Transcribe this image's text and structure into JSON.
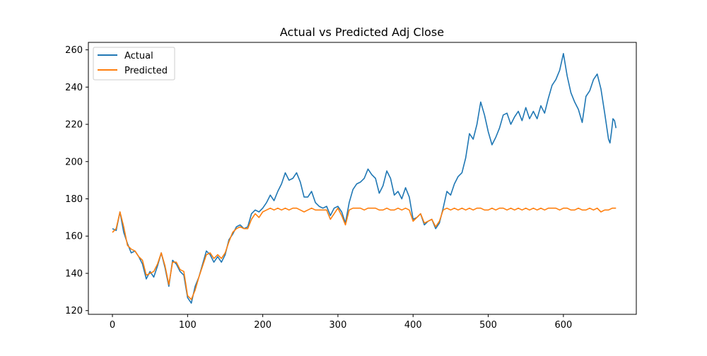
{
  "colors": {
    "actual": "#1f77b4",
    "predicted": "#ff7f0e",
    "axis": "#000000",
    "background": "#ffffff"
  },
  "chart_data": {
    "type": "line",
    "title": "Actual vs Predicted Adj Close",
    "xlabel": "",
    "ylabel": "",
    "xlim": [
      -32,
      697
    ],
    "ylim": [
      118,
      264
    ],
    "xticks": [
      0,
      100,
      200,
      300,
      400,
      500,
      600
    ],
    "yticks": [
      120,
      140,
      160,
      180,
      200,
      220,
      240,
      260
    ],
    "grid": false,
    "legend_position": "top-left",
    "series": [
      {
        "name": "Actual",
        "color": "#1f77b4",
        "points": [
          [
            0,
            164
          ],
          [
            5,
            163
          ],
          [
            10,
            173
          ],
          [
            15,
            162
          ],
          [
            20,
            156
          ],
          [
            25,
            151
          ],
          [
            30,
            152
          ],
          [
            35,
            149
          ],
          [
            40,
            145
          ],
          [
            45,
            137
          ],
          [
            50,
            141
          ],
          [
            55,
            138
          ],
          [
            60,
            144
          ],
          [
            65,
            151
          ],
          [
            70,
            143
          ],
          [
            75,
            133
          ],
          [
            80,
            147
          ],
          [
            85,
            145
          ],
          [
            90,
            141
          ],
          [
            95,
            139
          ],
          [
            100,
            127
          ],
          [
            105,
            124
          ],
          [
            110,
            133
          ],
          [
            115,
            138
          ],
          [
            120,
            145
          ],
          [
            125,
            152
          ],
          [
            130,
            150
          ],
          [
            135,
            146
          ],
          [
            140,
            149
          ],
          [
            145,
            146
          ],
          [
            150,
            150
          ],
          [
            155,
            158
          ],
          [
            160,
            161
          ],
          [
            165,
            165
          ],
          [
            170,
            166
          ],
          [
            175,
            164
          ],
          [
            180,
            165
          ],
          [
            185,
            172
          ],
          [
            190,
            174
          ],
          [
            195,
            173
          ],
          [
            200,
            175
          ],
          [
            205,
            178
          ],
          [
            210,
            182
          ],
          [
            215,
            179
          ],
          [
            220,
            184
          ],
          [
            225,
            188
          ],
          [
            230,
            194
          ],
          [
            235,
            190
          ],
          [
            240,
            191
          ],
          [
            245,
            194
          ],
          [
            250,
            189
          ],
          [
            255,
            181
          ],
          [
            260,
            181
          ],
          [
            265,
            184
          ],
          [
            270,
            178
          ],
          [
            275,
            176
          ],
          [
            280,
            175
          ],
          [
            285,
            176
          ],
          [
            290,
            171
          ],
          [
            295,
            175
          ],
          [
            300,
            176
          ],
          [
            305,
            173
          ],
          [
            310,
            167
          ],
          [
            315,
            178
          ],
          [
            320,
            185
          ],
          [
            325,
            188
          ],
          [
            330,
            189
          ],
          [
            335,
            191
          ],
          [
            340,
            196
          ],
          [
            345,
            193
          ],
          [
            350,
            191
          ],
          [
            355,
            183
          ],
          [
            360,
            187
          ],
          [
            365,
            195
          ],
          [
            370,
            191
          ],
          [
            375,
            182
          ],
          [
            380,
            184
          ],
          [
            385,
            180
          ],
          [
            390,
            186
          ],
          [
            395,
            181
          ],
          [
            400,
            169
          ],
          [
            405,
            170
          ],
          [
            410,
            172
          ],
          [
            415,
            166
          ],
          [
            420,
            168
          ],
          [
            425,
            169
          ],
          [
            430,
            164
          ],
          [
            435,
            167
          ],
          [
            440,
            175
          ],
          [
            445,
            184
          ],
          [
            450,
            182
          ],
          [
            455,
            188
          ],
          [
            460,
            192
          ],
          [
            465,
            194
          ],
          [
            470,
            202
          ],
          [
            475,
            215
          ],
          [
            480,
            212
          ],
          [
            485,
            220
          ],
          [
            490,
            232
          ],
          [
            495,
            225
          ],
          [
            500,
            216
          ],
          [
            505,
            209
          ],
          [
            510,
            213
          ],
          [
            515,
            218
          ],
          [
            520,
            225
          ],
          [
            525,
            226
          ],
          [
            530,
            220
          ],
          [
            535,
            224
          ],
          [
            540,
            227
          ],
          [
            545,
            222
          ],
          [
            550,
            229
          ],
          [
            555,
            223
          ],
          [
            560,
            227
          ],
          [
            565,
            223
          ],
          [
            570,
            230
          ],
          [
            575,
            226
          ],
          [
            580,
            234
          ],
          [
            585,
            241
          ],
          [
            590,
            244
          ],
          [
            595,
            249
          ],
          [
            600,
            258
          ],
          [
            605,
            246
          ],
          [
            610,
            237
          ],
          [
            615,
            232
          ],
          [
            620,
            228
          ],
          [
            625,
            221
          ],
          [
            630,
            235
          ],
          [
            635,
            238
          ],
          [
            640,
            244
          ],
          [
            645,
            247
          ],
          [
            650,
            239
          ],
          [
            655,
            226
          ],
          [
            660,
            212
          ],
          [
            662,
            210
          ],
          [
            664,
            216
          ],
          [
            666,
            223
          ],
          [
            668,
            222
          ],
          [
            670,
            218
          ]
        ]
      },
      {
        "name": "Predicted",
        "color": "#ff7f0e",
        "points": [
          [
            0,
            162
          ],
          [
            5,
            164
          ],
          [
            10,
            173
          ],
          [
            15,
            165
          ],
          [
            20,
            155
          ],
          [
            25,
            153
          ],
          [
            30,
            152
          ],
          [
            35,
            149
          ],
          [
            40,
            147
          ],
          [
            45,
            139
          ],
          [
            50,
            140
          ],
          [
            55,
            141
          ],
          [
            60,
            145
          ],
          [
            65,
            151
          ],
          [
            70,
            144
          ],
          [
            75,
            134
          ],
          [
            80,
            146
          ],
          [
            85,
            146
          ],
          [
            90,
            142
          ],
          [
            95,
            141
          ],
          [
            100,
            128
          ],
          [
            105,
            126
          ],
          [
            110,
            131
          ],
          [
            115,
            138
          ],
          [
            120,
            144
          ],
          [
            125,
            150
          ],
          [
            130,
            151
          ],
          [
            135,
            148
          ],
          [
            140,
            150
          ],
          [
            145,
            148
          ],
          [
            150,
            151
          ],
          [
            155,
            157
          ],
          [
            160,
            162
          ],
          [
            165,
            164
          ],
          [
            170,
            165
          ],
          [
            175,
            164
          ],
          [
            180,
            164
          ],
          [
            185,
            169
          ],
          [
            190,
            172
          ],
          [
            195,
            170
          ],
          [
            200,
            173
          ],
          [
            205,
            174
          ],
          [
            210,
            175
          ],
          [
            215,
            174
          ],
          [
            220,
            175
          ],
          [
            225,
            174
          ],
          [
            230,
            175
          ],
          [
            235,
            174
          ],
          [
            240,
            175
          ],
          [
            245,
            175
          ],
          [
            250,
            174
          ],
          [
            255,
            173
          ],
          [
            260,
            174
          ],
          [
            265,
            175
          ],
          [
            270,
            174
          ],
          [
            275,
            174
          ],
          [
            280,
            174
          ],
          [
            285,
            174
          ],
          [
            290,
            169
          ],
          [
            295,
            172
          ],
          [
            300,
            175
          ],
          [
            305,
            171
          ],
          [
            310,
            166
          ],
          [
            315,
            174
          ],
          [
            320,
            175
          ],
          [
            325,
            175
          ],
          [
            330,
            175
          ],
          [
            335,
            174
          ],
          [
            340,
            175
          ],
          [
            345,
            175
          ],
          [
            350,
            175
          ],
          [
            355,
            174
          ],
          [
            360,
            174
          ],
          [
            365,
            175
          ],
          [
            370,
            174
          ],
          [
            375,
            174
          ],
          [
            380,
            175
          ],
          [
            385,
            174
          ],
          [
            390,
            175
          ],
          [
            395,
            174
          ],
          [
            400,
            168
          ],
          [
            405,
            170
          ],
          [
            410,
            172
          ],
          [
            415,
            167
          ],
          [
            420,
            168
          ],
          [
            425,
            169
          ],
          [
            430,
            165
          ],
          [
            435,
            168
          ],
          [
            440,
            174
          ],
          [
            445,
            175
          ],
          [
            450,
            174
          ],
          [
            455,
            175
          ],
          [
            460,
            174
          ],
          [
            465,
            175
          ],
          [
            470,
            174
          ],
          [
            475,
            175
          ],
          [
            480,
            174
          ],
          [
            485,
            175
          ],
          [
            490,
            175
          ],
          [
            495,
            174
          ],
          [
            500,
            174
          ],
          [
            505,
            175
          ],
          [
            510,
            174
          ],
          [
            515,
            175
          ],
          [
            520,
            175
          ],
          [
            525,
            174
          ],
          [
            530,
            175
          ],
          [
            535,
            174
          ],
          [
            540,
            175
          ],
          [
            545,
            174
          ],
          [
            550,
            175
          ],
          [
            555,
            174
          ],
          [
            560,
            175
          ],
          [
            565,
            174
          ],
          [
            570,
            175
          ],
          [
            575,
            174
          ],
          [
            580,
            175
          ],
          [
            585,
            175
          ],
          [
            590,
            175
          ],
          [
            595,
            174
          ],
          [
            600,
            175
          ],
          [
            605,
            175
          ],
          [
            610,
            174
          ],
          [
            615,
            174
          ],
          [
            620,
            175
          ],
          [
            625,
            174
          ],
          [
            630,
            174
          ],
          [
            635,
            175
          ],
          [
            640,
            174
          ],
          [
            645,
            175
          ],
          [
            650,
            173
          ],
          [
            655,
            174
          ],
          [
            660,
            174
          ],
          [
            665,
            175
          ],
          [
            670,
            175
          ]
        ]
      }
    ]
  }
}
